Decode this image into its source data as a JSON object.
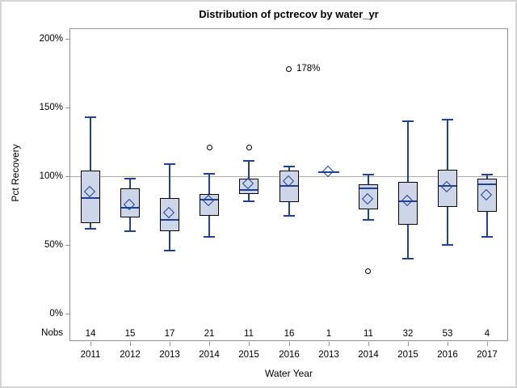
{
  "chart_data": {
    "type": "boxplot",
    "title": "Distribution of pctrecov by water_yr",
    "xlabel": "Water Year",
    "ylabel": "Pct Recovery",
    "ylim": [
      0,
      200
    ],
    "yticks": [
      {
        "value": 200,
        "label": "200%"
      },
      {
        "value": 150,
        "label": "150%"
      },
      {
        "value": 100,
        "label": "100%"
      },
      {
        "value": 50,
        "label": "50%"
      },
      {
        "value": 0,
        "label": "0%"
      }
    ],
    "reference_line": 100,
    "grid": false,
    "legend": "none",
    "nobs_label": "Nobs",
    "categories": [
      "2011",
      "2012",
      "2013",
      "2014",
      "2015",
      "2016",
      "2013",
      "2014",
      "2015",
      "2016",
      "2017"
    ],
    "nobs": [
      "14",
      "15",
      "17",
      "21",
      "11",
      "16",
      "1",
      "11",
      "32",
      "53",
      "4"
    ],
    "series": [
      {
        "label": "2011",
        "nobs": "14",
        "low": 62,
        "q1": 66,
        "median": 84,
        "q3": 104,
        "high": 143,
        "mean": 88,
        "outliers": []
      },
      {
        "label": "2012",
        "nobs": "15",
        "low": 60,
        "q1": 70,
        "median": 77,
        "q3": 91,
        "high": 98,
        "mean": 79,
        "outliers": []
      },
      {
        "label": "2013",
        "nobs": "17",
        "low": 46,
        "q1": 60,
        "median": 68,
        "q3": 84,
        "high": 109,
        "mean": 73,
        "outliers": []
      },
      {
        "label": "2014",
        "nobs": "21",
        "low": 56,
        "q1": 71,
        "median": 83,
        "q3": 87,
        "high": 102,
        "mean": 82,
        "outliers": [
          121
        ]
      },
      {
        "label": "2015",
        "nobs": "11",
        "low": 82,
        "q1": 87,
        "median": 90,
        "q3": 98,
        "high": 111,
        "mean": 94,
        "outliers": [
          121
        ]
      },
      {
        "label": "2016",
        "nobs": "16",
        "low": 71,
        "q1": 81,
        "median": 93,
        "q3": 104,
        "high": 107,
        "mean": 96,
        "outliers": [
          178
        ]
      },
      {
        "label": "2013",
        "nobs": "1",
        "single": 103,
        "median": 103,
        "mean": 103,
        "outliers": []
      },
      {
        "label": "2014",
        "nobs": "11",
        "low": 68,
        "q1": 76,
        "median": 91,
        "q3": 94,
        "high": 101,
        "mean": 83,
        "outliers": [
          31
        ]
      },
      {
        "label": "2015",
        "nobs": "32",
        "low": 40,
        "q1": 65,
        "median": 82,
        "q3": 96,
        "high": 140,
        "mean": 82,
        "outliers": []
      },
      {
        "label": "2016",
        "nobs": "53",
        "low": 50,
        "q1": 78,
        "median": 93,
        "q3": 105,
        "high": 141,
        "mean": 92,
        "outliers": []
      },
      {
        "label": "2017",
        "nobs": "4",
        "low": 56,
        "q1": 74,
        "median": 94,
        "q3": 98,
        "high": 101,
        "mean": 86,
        "outliers": []
      }
    ],
    "annotation": {
      "text": "178%",
      "series_index": 5,
      "value": 178
    },
    "colors": {
      "box_fill": "#cdd6e8",
      "box_border": "#000000",
      "line_blue": "#1e419b",
      "reference_line": "#ababab",
      "frame": "#90909a",
      "outlier_ring": "#000000",
      "text": "#000000"
    }
  }
}
